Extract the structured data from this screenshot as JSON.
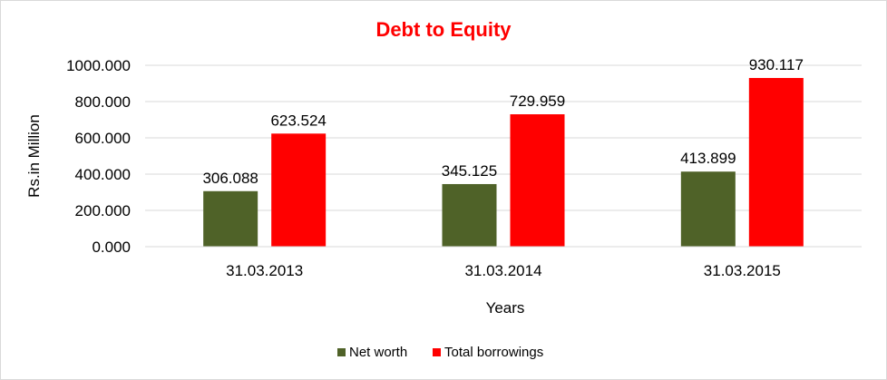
{
  "chart_data": {
    "type": "bar",
    "title": "Debt to Equity",
    "xlabel": "Years",
    "ylabel": "Rs.in Million",
    "categories": [
      "31.03.2013",
      "31.03.2014",
      "31.03.2015"
    ],
    "series": [
      {
        "name": "Net worth",
        "color": "#4f6228",
        "values": [
          306.088,
          345.125,
          413.899
        ],
        "labels": [
          "306.088",
          "345.125",
          "413.899"
        ]
      },
      {
        "name": "Total borrowings",
        "color": "#ff0000",
        "values": [
          623.524,
          729.959,
          930.117
        ],
        "labels": [
          "623.524",
          "729.959",
          "930.117"
        ]
      }
    ],
    "ylim": [
      0,
      1000
    ],
    "yticks": [
      {
        "value": 0,
        "label": "0.000"
      },
      {
        "value": 200,
        "label": "200.000"
      },
      {
        "value": 400,
        "label": "400.000"
      },
      {
        "value": 600,
        "label": "600.000"
      },
      {
        "value": 800,
        "label": "800.000"
      },
      {
        "value": 1000,
        "label": "1000.000"
      }
    ],
    "grid": true,
    "legend_position": "bottom",
    "title_color": "#ff0000",
    "grid_color": "#d9d9d9"
  }
}
